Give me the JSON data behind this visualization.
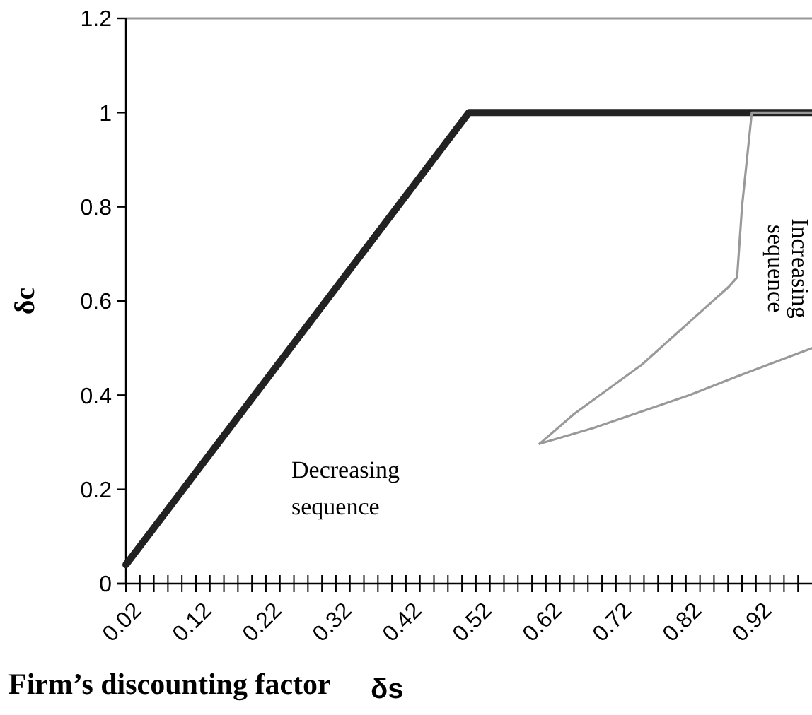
{
  "chart_data": {
    "type": "line",
    "xlabel": "Firm’s discounting factor",
    "ylabel": "δc",
    "xlim": [
      0.02,
      1.0
    ],
    "ylim": [
      0,
      1.2
    ],
    "xticks": [
      {
        "value": 0.02,
        "label": "0.02"
      },
      {
        "value": 0.04,
        "label": null
      },
      {
        "value": 0.06,
        "label": null
      },
      {
        "value": 0.08,
        "label": null
      },
      {
        "value": 0.1,
        "label": null
      },
      {
        "value": 0.12,
        "label": "0.12"
      },
      {
        "value": 0.14,
        "label": null
      },
      {
        "value": 0.16,
        "label": null
      },
      {
        "value": 0.18,
        "label": null
      },
      {
        "value": 0.2,
        "label": null
      },
      {
        "value": 0.22,
        "label": "0.22"
      },
      {
        "value": 0.24,
        "label": null
      },
      {
        "value": 0.26,
        "label": null
      },
      {
        "value": 0.28,
        "label": null
      },
      {
        "value": 0.3,
        "label": null
      },
      {
        "value": 0.32,
        "label": "0.32"
      },
      {
        "value": 0.34,
        "label": null
      },
      {
        "value": 0.36,
        "label": null
      },
      {
        "value": 0.38,
        "label": null
      },
      {
        "value": 0.4,
        "label": null
      },
      {
        "value": 0.42,
        "label": "0.42"
      },
      {
        "value": 0.44,
        "label": null
      },
      {
        "value": 0.46,
        "label": null
      },
      {
        "value": 0.48,
        "label": null
      },
      {
        "value": 0.5,
        "label": null
      },
      {
        "value": 0.52,
        "label": "0.52"
      },
      {
        "value": 0.54,
        "label": null
      },
      {
        "value": 0.56,
        "label": null
      },
      {
        "value": 0.58,
        "label": null
      },
      {
        "value": 0.6,
        "label": null
      },
      {
        "value": 0.62,
        "label": "0.62"
      },
      {
        "value": 0.64,
        "label": null
      },
      {
        "value": 0.66,
        "label": null
      },
      {
        "value": 0.68,
        "label": null
      },
      {
        "value": 0.7,
        "label": null
      },
      {
        "value": 0.72,
        "label": "0.72"
      },
      {
        "value": 0.74,
        "label": null
      },
      {
        "value": 0.76,
        "label": null
      },
      {
        "value": 0.78,
        "label": null
      },
      {
        "value": 0.8,
        "label": null
      },
      {
        "value": 0.82,
        "label": "0.82"
      },
      {
        "value": 0.84,
        "label": null
      },
      {
        "value": 0.86,
        "label": null
      },
      {
        "value": 0.88,
        "label": null
      },
      {
        "value": 0.9,
        "label": null
      },
      {
        "value": 0.92,
        "label": "0.92"
      },
      {
        "value": 0.94,
        "label": null
      },
      {
        "value": 0.96,
        "label": null
      },
      {
        "value": 0.98,
        "label": null
      }
    ],
    "yticks": [
      0,
      0.2,
      0.4,
      0.6,
      0.8,
      1,
      1.2
    ],
    "series": [
      {
        "color": "#222222",
        "x": [
          0.02,
          0.51,
          1.0
        ],
        "values": [
          0.04,
          1.0,
          1.0
        ]
      },
      {
        "color": "#999999",
        "x": [
          0.611,
          0.66,
          0.757,
          0.881,
          0.893,
          0.9,
          0.914,
          0.93,
          1.0
        ],
        "values": [
          0.297,
          0.36,
          0.465,
          0.63,
          0.65,
          0.8,
          1.0,
          1.0,
          1.0
        ]
      },
      {
        "color": "#999999",
        "x": [
          0.611,
          0.687,
          0.825,
          0.893,
          1.0
        ],
        "values": [
          0.297,
          0.33,
          0.4,
          0.44,
          0.5
        ]
      }
    ],
    "annotations": [
      "Increasing sequence",
      "Decreasing sequence",
      "δs"
    ],
    "grid": false,
    "line_style": "solid"
  }
}
